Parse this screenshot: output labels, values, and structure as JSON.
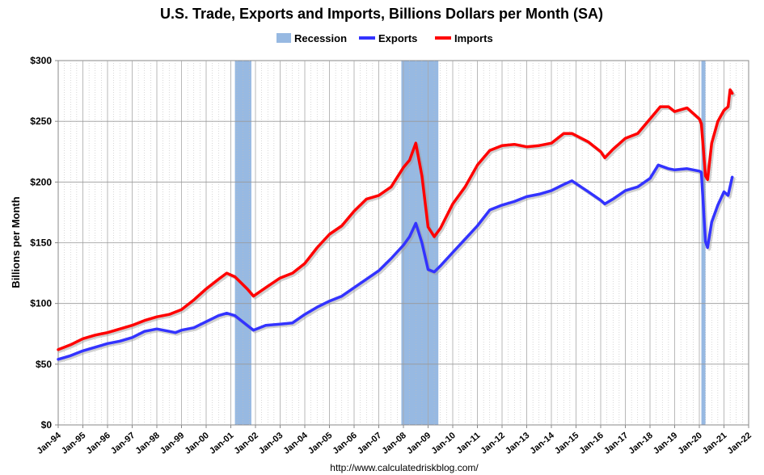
{
  "chart_data": {
    "type": "line",
    "title": "U.S. Trade, Exports and Imports, Billions Dollars per Month (SA)",
    "ylabel": "Billions per Month",
    "xlabel": "",
    "source": "http://www.calculatedriskblog.com/",
    "ylim": [
      0,
      300
    ],
    "xlim": [
      "1994-01",
      "2022-01"
    ],
    "y_ticks": [
      {
        "value": 0,
        "label": "$0"
      },
      {
        "value": 50,
        "label": "$50"
      },
      {
        "value": 100,
        "label": "$100"
      },
      {
        "value": 150,
        "label": "$150"
      },
      {
        "value": 200,
        "label": "$200"
      },
      {
        "value": 250,
        "label": "$250"
      },
      {
        "value": 300,
        "label": "$300"
      }
    ],
    "x_ticks": [
      {
        "value": "1994-01",
        "label": "Jan-94"
      },
      {
        "value": "1995-01",
        "label": "Jan-95"
      },
      {
        "value": "1996-01",
        "label": "Jan-96"
      },
      {
        "value": "1997-01",
        "label": "Jan-97"
      },
      {
        "value": "1998-01",
        "label": "Jan-98"
      },
      {
        "value": "1999-01",
        "label": "Jan-99"
      },
      {
        "value": "2000-01",
        "label": "Jan-00"
      },
      {
        "value": "2001-01",
        "label": "Jan-01"
      },
      {
        "value": "2002-01",
        "label": "Jan-02"
      },
      {
        "value": "2003-01",
        "label": "Jan-03"
      },
      {
        "value": "2004-01",
        "label": "Jan-04"
      },
      {
        "value": "2005-01",
        "label": "Jan-05"
      },
      {
        "value": "2006-01",
        "label": "Jan-06"
      },
      {
        "value": "2007-01",
        "label": "Jan-07"
      },
      {
        "value": "2008-01",
        "label": "Jan-08"
      },
      {
        "value": "2009-01",
        "label": "Jan-09"
      },
      {
        "value": "2010-01",
        "label": "Jan-10"
      },
      {
        "value": "2011-01",
        "label": "Jan-11"
      },
      {
        "value": "2012-01",
        "label": "Jan-12"
      },
      {
        "value": "2013-01",
        "label": "Jan-13"
      },
      {
        "value": "2014-01",
        "label": "Jan-14"
      },
      {
        "value": "2015-01",
        "label": "Jan-15"
      },
      {
        "value": "2016-01",
        "label": "Jan-16"
      },
      {
        "value": "2017-01",
        "label": "Jan-17"
      },
      {
        "value": "2018-01",
        "label": "Jan-18"
      },
      {
        "value": "2019-01",
        "label": "Jan-19"
      },
      {
        "value": "2020-01",
        "label": "Jan-20"
      },
      {
        "value": "2021-01",
        "label": "Jan-21"
      },
      {
        "value": "2022-01",
        "label": "Jan-22"
      }
    ],
    "grid": true,
    "legend_position": "top",
    "legend": [
      {
        "name": "Recession",
        "kind": "band",
        "color": "#97b9e2"
      },
      {
        "name": "Exports",
        "kind": "line",
        "color": "#3333ff"
      },
      {
        "name": "Imports",
        "kind": "line",
        "color": "#ff0000"
      }
    ],
    "recessions": [
      {
        "start": "2001-03",
        "end": "2001-11"
      },
      {
        "start": "2007-12",
        "end": "2009-06"
      },
      {
        "start": "2020-02",
        "end": "2020-04"
      }
    ],
    "series": [
      {
        "name": "Exports",
        "color": "#3333ff",
        "points": [
          [
            "1994-01",
            54
          ],
          [
            "1994-07",
            57
          ],
          [
            "1995-01",
            61
          ],
          [
            "1995-07",
            64
          ],
          [
            "1996-01",
            67
          ],
          [
            "1996-07",
            69
          ],
          [
            "1997-01",
            72
          ],
          [
            "1997-07",
            77
          ],
          [
            "1998-01",
            79
          ],
          [
            "1998-07",
            77
          ],
          [
            "1998-10",
            76
          ],
          [
            "1999-01",
            78
          ],
          [
            "1999-07",
            80
          ],
          [
            "2000-01",
            85
          ],
          [
            "2000-07",
            90
          ],
          [
            "2000-11",
            92
          ],
          [
            "2001-03",
            90
          ],
          [
            "2001-09",
            82
          ],
          [
            "2001-12",
            78
          ],
          [
            "2002-06",
            82
          ],
          [
            "2003-01",
            83
          ],
          [
            "2003-07",
            84
          ],
          [
            "2004-01",
            91
          ],
          [
            "2004-07",
            97
          ],
          [
            "2005-01",
            102
          ],
          [
            "2005-07",
            106
          ],
          [
            "2006-01",
            113
          ],
          [
            "2006-07",
            120
          ],
          [
            "2007-01",
            127
          ],
          [
            "2007-07",
            137
          ],
          [
            "2008-01",
            148
          ],
          [
            "2008-04",
            155
          ],
          [
            "2008-07",
            166
          ],
          [
            "2008-10",
            150
          ],
          [
            "2009-01",
            128
          ],
          [
            "2009-04",
            126
          ],
          [
            "2009-07",
            131
          ],
          [
            "2010-01",
            142
          ],
          [
            "2010-07",
            153
          ],
          [
            "2011-01",
            164
          ],
          [
            "2011-07",
            177
          ],
          [
            "2012-01",
            181
          ],
          [
            "2012-07",
            184
          ],
          [
            "2013-01",
            188
          ],
          [
            "2013-07",
            190
          ],
          [
            "2014-01",
            193
          ],
          [
            "2014-07",
            198
          ],
          [
            "2014-11",
            201
          ],
          [
            "2015-07",
            192
          ],
          [
            "2016-01",
            185
          ],
          [
            "2016-03",
            182
          ],
          [
            "2016-07",
            186
          ],
          [
            "2017-01",
            193
          ],
          [
            "2017-07",
            196
          ],
          [
            "2018-01",
            203
          ],
          [
            "2018-05",
            214
          ],
          [
            "2018-10",
            211
          ],
          [
            "2019-01",
            210
          ],
          [
            "2019-07",
            211
          ],
          [
            "2020-01",
            209
          ],
          [
            "2020-02",
            208
          ],
          [
            "2020-04",
            151
          ],
          [
            "2020-05",
            146
          ],
          [
            "2020-07",
            167
          ],
          [
            "2020-10",
            181
          ],
          [
            "2021-01",
            192
          ],
          [
            "2021-03",
            189
          ],
          [
            "2021-05",
            204
          ]
        ]
      },
      {
        "name": "Imports",
        "color": "#ff0000",
        "points": [
          [
            "1994-01",
            62
          ],
          [
            "1994-07",
            66
          ],
          [
            "1995-01",
            71
          ],
          [
            "1995-07",
            74
          ],
          [
            "1996-01",
            76
          ],
          [
            "1996-07",
            79
          ],
          [
            "1997-01",
            82
          ],
          [
            "1997-07",
            86
          ],
          [
            "1998-01",
            89
          ],
          [
            "1998-07",
            91
          ],
          [
            "1999-01",
            95
          ],
          [
            "1999-07",
            103
          ],
          [
            "2000-01",
            112
          ],
          [
            "2000-07",
            120
          ],
          [
            "2000-11",
            125
          ],
          [
            "2001-03",
            122
          ],
          [
            "2001-09",
            112
          ],
          [
            "2001-12",
            106
          ],
          [
            "2002-06",
            113
          ],
          [
            "2003-01",
            121
          ],
          [
            "2003-07",
            125
          ],
          [
            "2004-01",
            133
          ],
          [
            "2004-07",
            146
          ],
          [
            "2005-01",
            157
          ],
          [
            "2005-07",
            164
          ],
          [
            "2006-01",
            176
          ],
          [
            "2006-07",
            186
          ],
          [
            "2007-01",
            189
          ],
          [
            "2007-07",
            196
          ],
          [
            "2008-01",
            212
          ],
          [
            "2008-04",
            218
          ],
          [
            "2008-07",
            232
          ],
          [
            "2008-10",
            205
          ],
          [
            "2009-01",
            163
          ],
          [
            "2009-04",
            155
          ],
          [
            "2009-07",
            162
          ],
          [
            "2010-01",
            182
          ],
          [
            "2010-07",
            196
          ],
          [
            "2011-01",
            214
          ],
          [
            "2011-07",
            226
          ],
          [
            "2012-01",
            230
          ],
          [
            "2012-07",
            231
          ],
          [
            "2013-01",
            229
          ],
          [
            "2013-07",
            230
          ],
          [
            "2014-01",
            232
          ],
          [
            "2014-07",
            240
          ],
          [
            "2014-11",
            240
          ],
          [
            "2015-07",
            233
          ],
          [
            "2016-01",
            225
          ],
          [
            "2016-03",
            220
          ],
          [
            "2016-07",
            227
          ],
          [
            "2017-01",
            236
          ],
          [
            "2017-07",
            240
          ],
          [
            "2018-01",
            252
          ],
          [
            "2018-06",
            262
          ],
          [
            "2018-10",
            262
          ],
          [
            "2019-01",
            258
          ],
          [
            "2019-07",
            261
          ],
          [
            "2020-01",
            252
          ],
          [
            "2020-02",
            248
          ],
          [
            "2020-04",
            205
          ],
          [
            "2020-05",
            202
          ],
          [
            "2020-07",
            232
          ],
          [
            "2020-10",
            250
          ],
          [
            "2021-01",
            259
          ],
          [
            "2021-03",
            262
          ],
          [
            "2021-04",
            276
          ],
          [
            "2021-05",
            273
          ]
        ]
      }
    ]
  }
}
